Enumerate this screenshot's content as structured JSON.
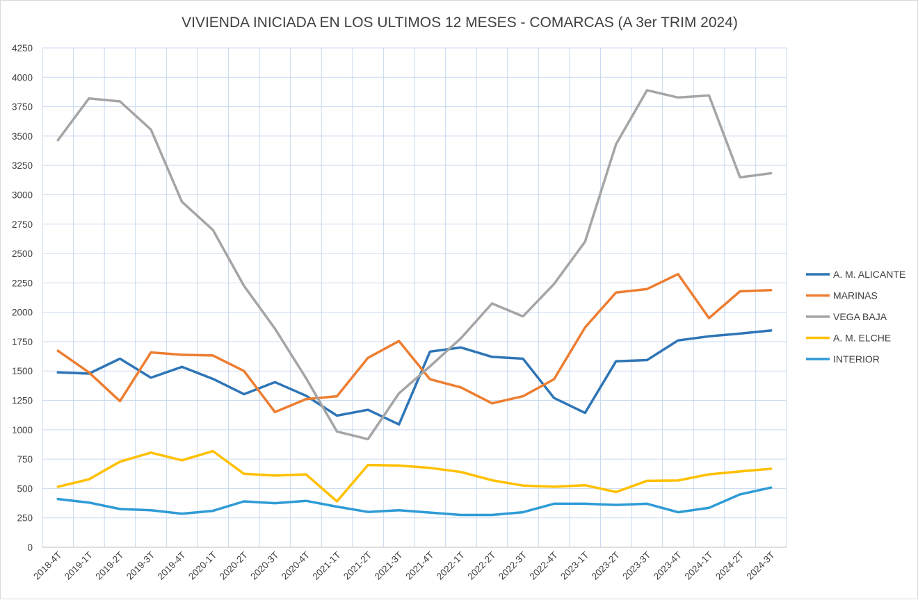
{
  "chart_data": {
    "type": "line",
    "title": "VIVIENDA INICIADA EN LOS ULTIMOS 12 MESES - COMARCAS (A 3er TRIM 2024)",
    "xlabel": "",
    "ylabel": "",
    "ylim": [
      0,
      4250
    ],
    "ytick_step": 250,
    "grid": true,
    "legend_position": "right",
    "categories": [
      "2018-4T",
      "2019-1T",
      "2019-2T",
      "2019-3T",
      "2019-4T",
      "2020-1T",
      "2020-2T",
      "2020-3T",
      "2020-4T",
      "2021-1T",
      "2021-2T",
      "2021-3T",
      "2021-4T",
      "2022-1T",
      "2022-2T",
      "2022-3T",
      "2022-4T",
      "2023-1T",
      "2023-2T",
      "2023-3T",
      "2023-4T",
      "2024-1T",
      "2024-2T",
      "2024-3T"
    ],
    "series": [
      {
        "name": "A. M. ALICANTE",
        "color": "#2E75B6",
        "values": [
          1488,
          1478,
          1605,
          1443,
          1535,
          1433,
          1303,
          1405,
          1290,
          1120,
          1170,
          1045,
          1665,
          1700,
          1620,
          1605,
          1270,
          1143,
          1583,
          1593,
          1760,
          1795,
          1818,
          1845
        ]
      },
      {
        "name": "MARINAS",
        "color": "#ED7D31",
        "values": [
          1672,
          1488,
          1243,
          1658,
          1638,
          1632,
          1500,
          1150,
          1260,
          1285,
          1612,
          1755,
          1430,
          1360,
          1225,
          1285,
          1430,
          1870,
          2168,
          2198,
          2325,
          1950,
          2178,
          2188
        ]
      },
      {
        "name": "VEGA BAJA",
        "color": "#A5A5A5",
        "values": [
          3465,
          3820,
          3795,
          3555,
          2940,
          2700,
          2225,
          1860,
          1440,
          985,
          920,
          1310,
          1540,
          1780,
          2075,
          1965,
          2240,
          2600,
          3430,
          3890,
          3828,
          3845,
          3148,
          3183
        ]
      },
      {
        "name": "A. M. ELCHE",
        "color": "#FFC000",
        "values": [
          515,
          578,
          728,
          805,
          740,
          818,
          625,
          610,
          620,
          390,
          700,
          695,
          675,
          640,
          570,
          525,
          515,
          528,
          470,
          565,
          568,
          620,
          645,
          668
        ]
      },
      {
        "name": "INTERIOR",
        "color": "#2E9BD6",
        "values": [
          410,
          380,
          325,
          315,
          285,
          310,
          390,
          375,
          395,
          345,
          300,
          315,
          295,
          275,
          275,
          298,
          370,
          370,
          360,
          370,
          298,
          335,
          450,
          508
        ]
      }
    ]
  }
}
